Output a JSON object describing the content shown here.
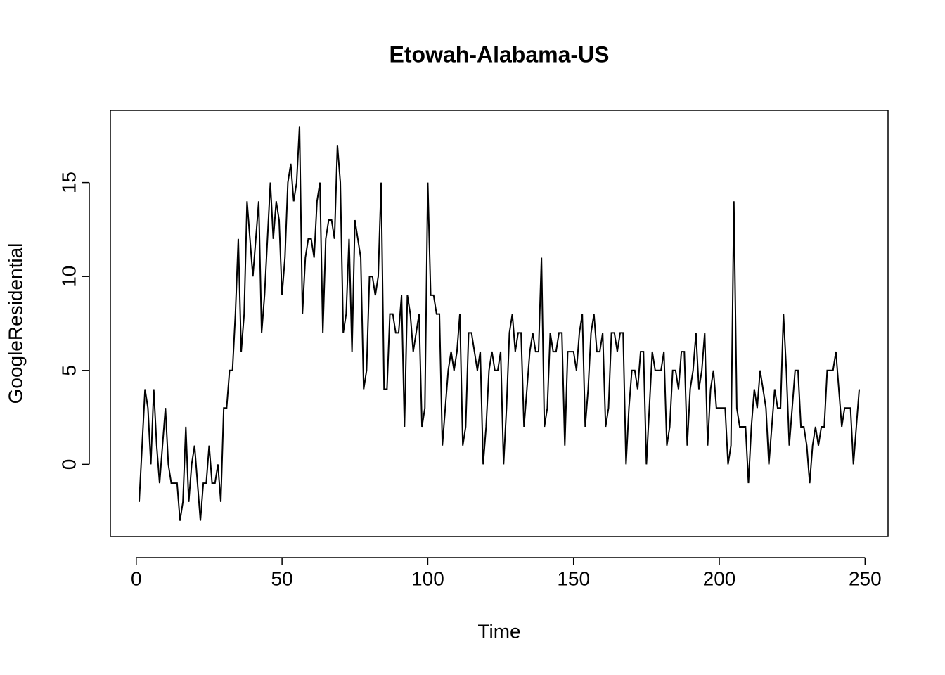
{
  "chart_data": {
    "type": "line",
    "title": "Etowah-Alabama-US",
    "x_label": "Time",
    "y_label": "GoogleResidential",
    "x": [
      1,
      2,
      3,
      4,
      5,
      6,
      7,
      8,
      9,
      10,
      11,
      12,
      13,
      14,
      15,
      16,
      17,
      18,
      19,
      20,
      21,
      22,
      23,
      24,
      25,
      26,
      27,
      28,
      29,
      30,
      31,
      32,
      33,
      34,
      35,
      36,
      37,
      38,
      39,
      40,
      41,
      42,
      43,
      44,
      45,
      46,
      47,
      48,
      49,
      50,
      51,
      52,
      53,
      54,
      55,
      56,
      57,
      58,
      59,
      60,
      61,
      62,
      63,
      64,
      65,
      66,
      67,
      68,
      69,
      70,
      71,
      72,
      73,
      74,
      75,
      76,
      77,
      78,
      79,
      80,
      81,
      82,
      83,
      84,
      85,
      86,
      87,
      88,
      89,
      90,
      91,
      92,
      93,
      94,
      95,
      96,
      97,
      98,
      99,
      100,
      101,
      102,
      103,
      104,
      105,
      106,
      107,
      108,
      109,
      110,
      111,
      112,
      113,
      114,
      115,
      116,
      117,
      118,
      119,
      120,
      121,
      122,
      123,
      124,
      125,
      126,
      127,
      128,
      129,
      130,
      131,
      132,
      133,
      134,
      135,
      136,
      137,
      138,
      139,
      140,
      141,
      142,
      143,
      144,
      145,
      146,
      147,
      148,
      149,
      150,
      151,
      152,
      153,
      154,
      155,
      156,
      157,
      158,
      159,
      160,
      161,
      162,
      163,
      164,
      165,
      166,
      167,
      168,
      169,
      170,
      171,
      172,
      173,
      174,
      175,
      176,
      177,
      178,
      179,
      180,
      181,
      182,
      183,
      184,
      185,
      186,
      187,
      188,
      189,
      190,
      191,
      192,
      193,
      194,
      195,
      196,
      197,
      198,
      199,
      200,
      201,
      202,
      203,
      204,
      205,
      206,
      207,
      208,
      209,
      210,
      211,
      212,
      213,
      214,
      215,
      216,
      217,
      218,
      219,
      220,
      221,
      222,
      223,
      224,
      225,
      226,
      227,
      228,
      229,
      230,
      231,
      232,
      233,
      234,
      235,
      236,
      237,
      238,
      239,
      240,
      241,
      242,
      243,
      244,
      245,
      246,
      247,
      248
    ],
    "values": [
      -2,
      1,
      4,
      3,
      0,
      4,
      1,
      -1,
      1,
      3,
      0,
      -1,
      -1,
      -1,
      -3,
      -2,
      2,
      -2,
      0,
      1,
      -1,
      -3,
      -1,
      -1,
      1,
      -1,
      -1,
      0,
      -2,
      3,
      3,
      5,
      5,
      8,
      12,
      6,
      8,
      14,
      12,
      10,
      12,
      14,
      7,
      9,
      12,
      15,
      12,
      14,
      13,
      9,
      11,
      15,
      16,
      14,
      15,
      18,
      8,
      11,
      12,
      12,
      11,
      14,
      15,
      7,
      12,
      13,
      13,
      12,
      17,
      15,
      7,
      8,
      12,
      6,
      13,
      12,
      11,
      4,
      5,
      10,
      10,
      9,
      10,
      15,
      4,
      4,
      8,
      8,
      7,
      7,
      9,
      2,
      9,
      8,
      6,
      7,
      8,
      2,
      3,
      15,
      9,
      9,
      8,
      8,
      1,
      3,
      5,
      6,
      5,
      6,
      8,
      1,
      2,
      7,
      7,
      6,
      5,
      6,
      0,
      2,
      5,
      6,
      5,
      5,
      6,
      0,
      3,
      7,
      8,
      6,
      7,
      7,
      2,
      4,
      6,
      7,
      6,
      6,
      11,
      2,
      3,
      7,
      6,
      6,
      7,
      7,
      1,
      6,
      6,
      6,
      5,
      7,
      8,
      2,
      4,
      7,
      8,
      6,
      6,
      7,
      2,
      3,
      7,
      7,
      6,
      7,
      7,
      0,
      3,
      5,
      5,
      4,
      6,
      6,
      0,
      3,
      6,
      5,
      5,
      5,
      6,
      1,
      2,
      5,
      5,
      4,
      6,
      6,
      1,
      4,
      5,
      7,
      4,
      5,
      7,
      1,
      4,
      5,
      3,
      3,
      3,
      3,
      0,
      1,
      14,
      3,
      2,
      2,
      2,
      -1,
      2,
      4,
      3,
      5,
      4,
      3,
      0,
      2,
      4,
      3,
      3,
      8,
      5,
      1,
      3,
      5,
      5,
      2,
      2,
      1,
      -1,
      1,
      2,
      1,
      2,
      2,
      5,
      5,
      5,
      6,
      4,
      2,
      3,
      3,
      3,
      0,
      2,
      4
    ],
    "color": "#000000",
    "xlim": [
      -8.88,
      257.88
    ],
    "ylim": [
      -3.84,
      18.84
    ],
    "xticks": [
      0,
      50,
      100,
      150,
      200,
      250
    ],
    "yticks": [
      0,
      5,
      10,
      15
    ]
  }
}
